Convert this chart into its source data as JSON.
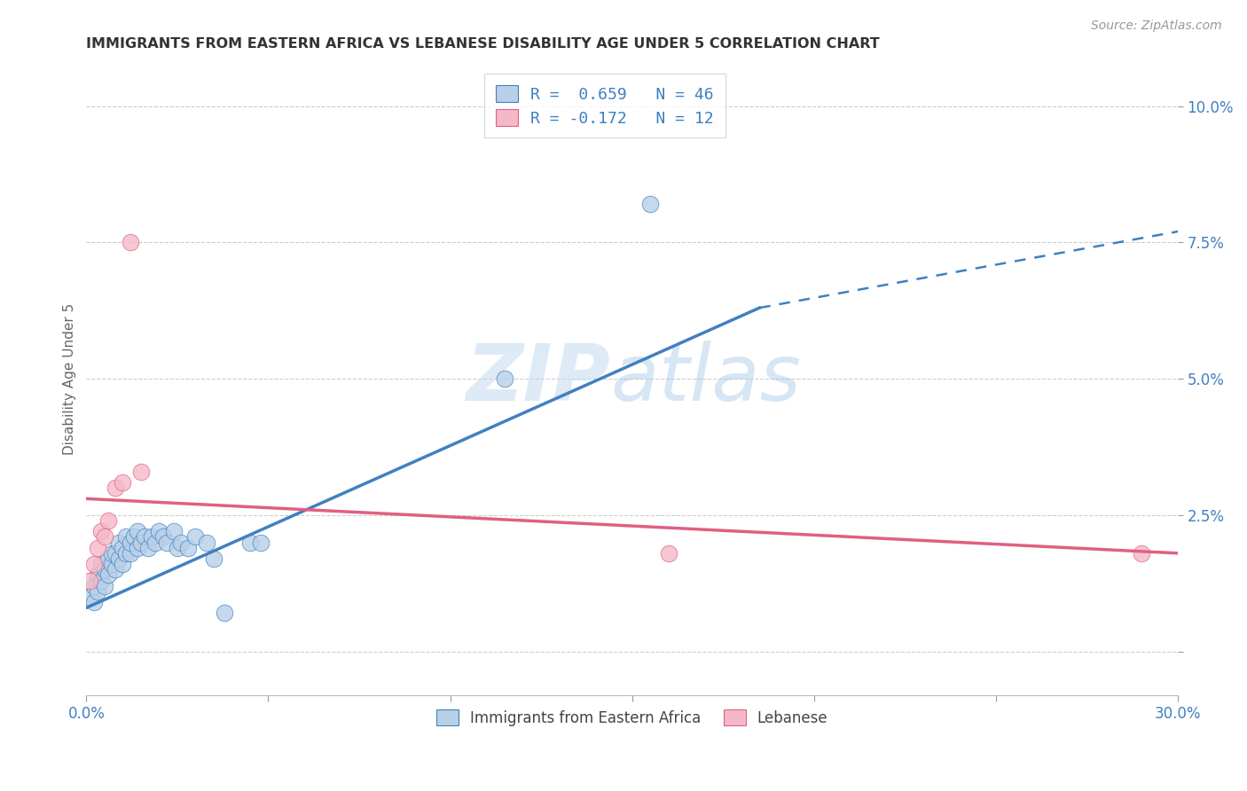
{
  "title": "IMMIGRANTS FROM EASTERN AFRICA VS LEBANESE DISABILITY AGE UNDER 5 CORRELATION CHART",
  "source": "Source: ZipAtlas.com",
  "xlabel": "",
  "ylabel": "Disability Age Under 5",
  "xlim": [
    0.0,
    0.3
  ],
  "ylim": [
    -0.008,
    0.108
  ],
  "xticks": [
    0.0,
    0.05,
    0.1,
    0.15,
    0.2,
    0.25,
    0.3
  ],
  "xticklabels": [
    "0.0%",
    "",
    "",
    "",
    "",
    "",
    "30.0%"
  ],
  "yticks": [
    0.0,
    0.025,
    0.05,
    0.075,
    0.1
  ],
  "yticklabels": [
    "",
    "2.5%",
    "5.0%",
    "7.5%",
    "10.0%"
  ],
  "legend1_label": "R =  0.659   N = 46",
  "legend2_label": "R = -0.172   N = 12",
  "blue_color": "#b8d0e8",
  "pink_color": "#f5b8c8",
  "blue_line_color": "#4080c0",
  "pink_line_color": "#e06080",
  "blue_scatter": [
    [
      0.001,
      0.01
    ],
    [
      0.002,
      0.009
    ],
    [
      0.002,
      0.012
    ],
    [
      0.003,
      0.011
    ],
    [
      0.003,
      0.014
    ],
    [
      0.004,
      0.013
    ],
    [
      0.004,
      0.016
    ],
    [
      0.005,
      0.012
    ],
    [
      0.005,
      0.015
    ],
    [
      0.006,
      0.014
    ],
    [
      0.006,
      0.017
    ],
    [
      0.007,
      0.016
    ],
    [
      0.007,
      0.018
    ],
    [
      0.008,
      0.015
    ],
    [
      0.008,
      0.018
    ],
    [
      0.009,
      0.017
    ],
    [
      0.009,
      0.02
    ],
    [
      0.01,
      0.016
    ],
    [
      0.01,
      0.019
    ],
    [
      0.011,
      0.018
    ],
    [
      0.011,
      0.021
    ],
    [
      0.012,
      0.018
    ],
    [
      0.012,
      0.02
    ],
    [
      0.013,
      0.021
    ],
    [
      0.014,
      0.019
    ],
    [
      0.014,
      0.022
    ],
    [
      0.015,
      0.02
    ],
    [
      0.016,
      0.021
    ],
    [
      0.017,
      0.019
    ],
    [
      0.018,
      0.021
    ],
    [
      0.019,
      0.02
    ],
    [
      0.02,
      0.022
    ],
    [
      0.021,
      0.021
    ],
    [
      0.022,
      0.02
    ],
    [
      0.024,
      0.022
    ],
    [
      0.025,
      0.019
    ],
    [
      0.026,
      0.02
    ],
    [
      0.028,
      0.019
    ],
    [
      0.03,
      0.021
    ],
    [
      0.033,
      0.02
    ],
    [
      0.035,
      0.017
    ],
    [
      0.038,
      0.007
    ],
    [
      0.045,
      0.02
    ],
    [
      0.048,
      0.02
    ],
    [
      0.115,
      0.05
    ],
    [
      0.155,
      0.082
    ]
  ],
  "pink_scatter": [
    [
      0.001,
      0.013
    ],
    [
      0.002,
      0.016
    ],
    [
      0.003,
      0.019
    ],
    [
      0.004,
      0.022
    ],
    [
      0.005,
      0.021
    ],
    [
      0.006,
      0.024
    ],
    [
      0.008,
      0.03
    ],
    [
      0.01,
      0.031
    ],
    [
      0.012,
      0.075
    ],
    [
      0.015,
      0.033
    ],
    [
      0.16,
      0.018
    ],
    [
      0.29,
      0.018
    ]
  ],
  "blue_trendline_solid": [
    [
      0.0,
      0.008
    ],
    [
      0.185,
      0.063
    ]
  ],
  "blue_trendline_dash": [
    [
      0.185,
      0.063
    ],
    [
      0.3,
      0.077
    ]
  ],
  "pink_trendline": [
    [
      0.0,
      0.028
    ],
    [
      0.3,
      0.018
    ]
  ],
  "watermark_zip": "ZIP",
  "watermark_atlas": "atlas",
  "background_color": "#ffffff",
  "grid_color": "#cccccc"
}
